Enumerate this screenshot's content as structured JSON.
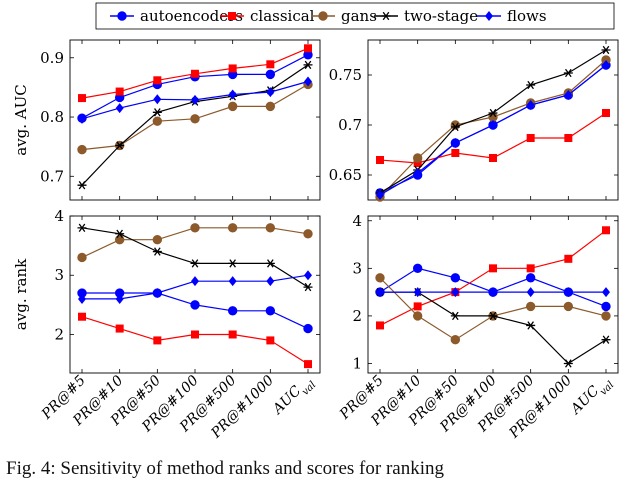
{
  "legend": [
    {
      "name": "autoencoders",
      "color": "#0000ff",
      "marker": "circle"
    },
    {
      "name": "classical",
      "color": "#ff0000",
      "marker": "square"
    },
    {
      "name": "gans",
      "color": "#8c5a2b",
      "marker": "circle"
    },
    {
      "name": "two-stage",
      "color": "#000000",
      "marker": "star"
    },
    {
      "name": "flows",
      "color": "#0000ff",
      "marker": "diamond"
    }
  ],
  "caption": "Fig. 4: Sensitivity of method ranks and scores for ranking",
  "chart_data": [
    {
      "type": "line",
      "position": "top-left",
      "ylabel": "avg. AUC",
      "xlabel": "",
      "ylim": [
        0.66,
        0.93
      ],
      "yticks": [
        0.7,
        0.8,
        0.9
      ],
      "ytick_labels": [
        "0.7",
        "0.8",
        "0.9"
      ],
      "categories": [
        "PR@#5",
        "PR@#10",
        "PR@#50",
        "PR@#100",
        "PR@#500",
        "PR@#1000",
        "AUC_val"
      ],
      "series": [
        {
          "name": "autoencoders",
          "values": [
            0.798,
            0.833,
            0.855,
            0.868,
            0.872,
            0.872,
            0.905
          ]
        },
        {
          "name": "classical",
          "values": [
            0.832,
            0.843,
            0.862,
            0.873,
            0.882,
            0.889,
            0.916
          ]
        },
        {
          "name": "gans",
          "values": [
            0.745,
            0.752,
            0.793,
            0.797,
            0.818,
            0.818,
            0.855
          ]
        },
        {
          "name": "two-stage",
          "values": [
            0.685,
            0.752,
            0.808,
            0.826,
            0.835,
            0.845,
            0.888
          ]
        },
        {
          "name": "flows",
          "values": [
            0.797,
            0.815,
            0.83,
            0.829,
            0.838,
            0.842,
            0.86
          ]
        }
      ]
    },
    {
      "type": "line",
      "position": "top-right",
      "ylabel": "",
      "xlabel": "",
      "ylim": [
        0.625,
        0.785
      ],
      "yticks": [
        0.65,
        0.7,
        0.75
      ],
      "ytick_labels": [
        "0.65",
        "0.7",
        "0.75"
      ],
      "categories": [
        "PR@#5",
        "PR@#10",
        "PR@#50",
        "PR@#100",
        "PR@#500",
        "PR@#1000",
        "AUC_val"
      ],
      "series": [
        {
          "name": "autoencoders",
          "values": [
            0.632,
            0.65,
            0.682,
            0.7,
            0.72,
            0.73,
            0.76
          ]
        },
        {
          "name": "classical",
          "values": [
            0.665,
            0.662,
            0.672,
            0.667,
            0.687,
            0.687,
            0.712
          ]
        },
        {
          "name": "gans",
          "values": [
            0.628,
            0.667,
            0.7,
            0.708,
            0.722,
            0.732,
            0.765
          ]
        },
        {
          "name": "two-stage",
          "values": [
            0.632,
            0.655,
            0.698,
            0.712,
            0.74,
            0.752,
            0.775
          ]
        },
        {
          "name": "flows",
          "values": [
            0.63,
            0.652,
            0.682,
            0.7,
            0.72,
            0.73,
            0.76
          ]
        }
      ]
    },
    {
      "type": "line",
      "position": "bottom-left",
      "ylabel": "avg. rank",
      "xlabel": "",
      "ylim": [
        1.35,
        4.0
      ],
      "yticks": [
        2,
        3,
        4
      ],
      "ytick_labels": [
        "2",
        "3",
        "4"
      ],
      "categories": [
        "PR@#5",
        "PR@#10",
        "PR@#50",
        "PR@#100",
        "PR@#500",
        "PR@#1000",
        "AUC_val"
      ],
      "series": [
        {
          "name": "autoencoders",
          "values": [
            2.7,
            2.7,
            2.7,
            2.5,
            2.4,
            2.4,
            2.1
          ]
        },
        {
          "name": "classical",
          "values": [
            2.3,
            2.1,
            1.9,
            2.0,
            2.0,
            1.9,
            1.5
          ]
        },
        {
          "name": "gans",
          "values": [
            3.3,
            3.6,
            3.6,
            3.8,
            3.8,
            3.8,
            3.7
          ]
        },
        {
          "name": "two-stage",
          "values": [
            3.8,
            3.7,
            3.4,
            3.2,
            3.2,
            3.2,
            2.8
          ]
        },
        {
          "name": "flows",
          "values": [
            2.6,
            2.6,
            2.7,
            2.9,
            2.9,
            2.9,
            3.0
          ]
        }
      ]
    },
    {
      "type": "line",
      "position": "bottom-right",
      "ylabel": "",
      "xlabel": "",
      "ylim": [
        0.8,
        4.1
      ],
      "yticks": [
        1,
        2,
        3,
        4
      ],
      "ytick_labels": [
        "1",
        "2",
        "3",
        "4"
      ],
      "categories": [
        "PR@#5",
        "PR@#10",
        "PR@#50",
        "PR@#100",
        "PR@#500",
        "PR@#1000",
        "AUC_val"
      ],
      "series": [
        {
          "name": "autoencoders",
          "values": [
            2.5,
            3.0,
            2.8,
            2.5,
            2.8,
            2.5,
            2.2
          ]
        },
        {
          "name": "classical",
          "values": [
            1.8,
            2.2,
            2.5,
            3.0,
            3.0,
            3.2,
            3.8
          ]
        },
        {
          "name": "gans",
          "values": [
            2.8,
            2.0,
            1.5,
            2.0,
            2.2,
            2.2,
            2.0
          ]
        },
        {
          "name": "two-stage",
          "values": [
            2.5,
            2.5,
            2.0,
            2.0,
            1.8,
            1.0,
            1.5
          ]
        },
        {
          "name": "flows",
          "values": [
            2.5,
            2.5,
            2.5,
            2.5,
            2.5,
            2.5,
            2.5
          ]
        }
      ]
    }
  ]
}
